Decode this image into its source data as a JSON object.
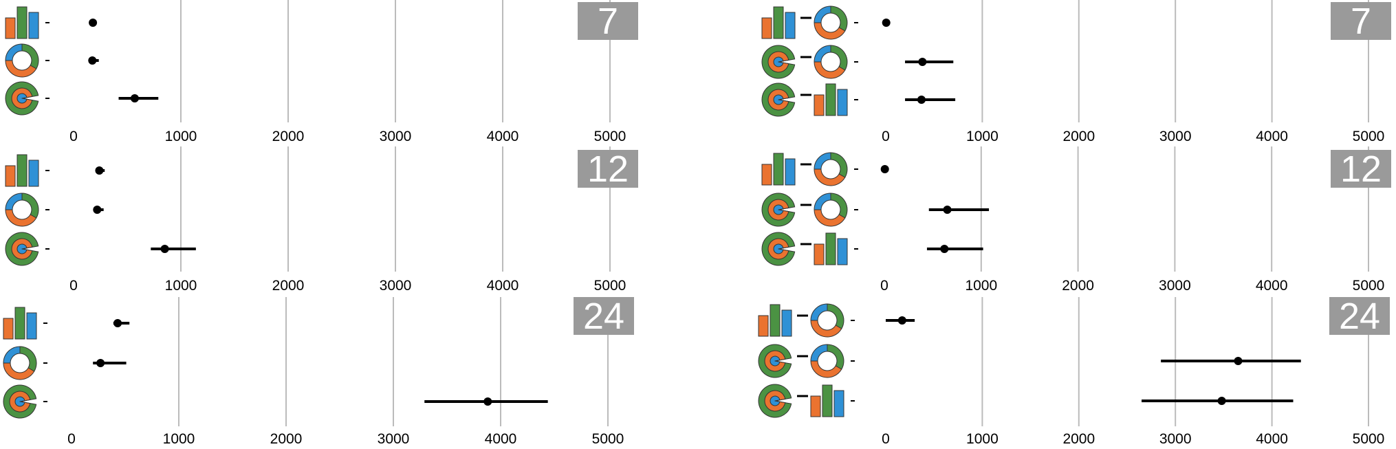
{
  "colors": {
    "orange": "#ea7330",
    "green": "#4b9243",
    "blue": "#2f91d6",
    "grid": "#bbbbbb",
    "badge": "#9a9a9a",
    "mark": "#000000"
  },
  "chart_data": [
    {
      "type": "scatter",
      "panel": "left-top",
      "badge": "7",
      "xlim": [
        -300,
        5000
      ],
      "xticks": [
        0,
        1000,
        2000,
        3000,
        4000,
        5000
      ],
      "xtick_labels": [
        "0",
        "1000",
        "2000",
        "3000",
        "4000",
        "5000"
      ],
      "rows": [
        {
          "icons": [
            "bar-chart"
          ],
          "mean": 180,
          "ci": [
            170,
            190
          ]
        },
        {
          "icons": [
            "donut-chart"
          ],
          "mean": 175,
          "ci": [
            150,
            235
          ]
        },
        {
          "icons": [
            "pie-chart"
          ],
          "mean": 570,
          "ci": [
            420,
            790
          ]
        }
      ]
    },
    {
      "type": "scatter",
      "panel": "right-top",
      "badge": "7",
      "xlim": [
        -300,
        5000
      ],
      "xticks": [
        0,
        1000,
        2000,
        3000,
        4000,
        5000
      ],
      "xtick_labels": [
        "0",
        "1000",
        "2000",
        "3000",
        "4000",
        "5000"
      ],
      "rows": [
        {
          "icons": [
            "bar-chart",
            "donut-chart"
          ],
          "mean": 5,
          "ci": [
            0,
            10
          ]
        },
        {
          "icons": [
            "pie-chart",
            "donut-chart"
          ],
          "mean": 380,
          "ci": [
            200,
            700
          ]
        },
        {
          "icons": [
            "pie-chart",
            "bar-chart"
          ],
          "mean": 370,
          "ci": [
            200,
            720
          ]
        }
      ]
    },
    {
      "type": "scatter",
      "panel": "left-middle",
      "badge": "12",
      "xlim": [
        -300,
        5000
      ],
      "xticks": [
        0,
        1000,
        2000,
        3000,
        4000,
        5000
      ],
      "xtick_labels": [
        "0",
        "1000",
        "2000",
        "3000",
        "4000",
        "5000"
      ],
      "rows": [
        {
          "icons": [
            "bar-chart"
          ],
          "mean": 240,
          "ci": [
            220,
            290
          ]
        },
        {
          "icons": [
            "donut-chart"
          ],
          "mean": 220,
          "ci": [
            200,
            280
          ]
        },
        {
          "icons": [
            "pie-chart"
          ],
          "mean": 850,
          "ci": [
            720,
            1140
          ]
        }
      ]
    },
    {
      "type": "scatter",
      "panel": "right-middle",
      "badge": "12",
      "xlim": [
        -300,
        5000
      ],
      "xticks": [
        0,
        1000,
        2000,
        3000,
        4000,
        5000
      ],
      "xtick_labels": [
        "0",
        "1000",
        "2000",
        "3000",
        "4000",
        "5000"
      ],
      "rows": [
        {
          "icons": [
            "bar-chart",
            "donut-chart"
          ],
          "mean": 5,
          "ci": [
            0,
            10
          ]
        },
        {
          "icons": [
            "pie-chart",
            "donut-chart"
          ],
          "mean": 650,
          "ci": [
            460,
            1080
          ]
        },
        {
          "icons": [
            "pie-chart",
            "bar-chart"
          ],
          "mean": 620,
          "ci": [
            440,
            1020
          ]
        }
      ]
    },
    {
      "type": "scatter",
      "panel": "left-bottom",
      "badge": "24",
      "xlim": [
        -300,
        5000
      ],
      "xticks": [
        0,
        1000,
        2000,
        3000,
        4000,
        5000
      ],
      "xtick_labels": [
        "0",
        "1000",
        "2000",
        "3000",
        "4000",
        "5000"
      ],
      "rows": [
        {
          "icons": [
            "bar-chart"
          ],
          "mean": 430,
          "ci": [
            390,
            540
          ]
        },
        {
          "icons": [
            "donut-chart"
          ],
          "mean": 270,
          "ci": [
            200,
            510
          ]
        },
        {
          "icons": [
            "pie-chart"
          ],
          "mean": 3880,
          "ci": [
            3290,
            4440
          ]
        }
      ]
    },
    {
      "type": "scatter",
      "panel": "right-bottom",
      "badge": "24",
      "xlim": [
        -300,
        5000
      ],
      "xticks": [
        0,
        1000,
        2000,
        3000,
        4000,
        5000
      ],
      "xtick_labels": [
        "0",
        "1000",
        "2000",
        "3000",
        "4000",
        "5000"
      ],
      "rows": [
        {
          "icons": [
            "bar-chart",
            "donut-chart"
          ],
          "mean": 170,
          "ci": [
            0,
            300
          ]
        },
        {
          "icons": [
            "pie-chart",
            "donut-chart"
          ],
          "mean": 3650,
          "ci": [
            2850,
            4300
          ]
        },
        {
          "icons": [
            "pie-chart",
            "bar-chart"
          ],
          "mean": 3480,
          "ci": [
            2650,
            4220
          ]
        }
      ]
    }
  ]
}
